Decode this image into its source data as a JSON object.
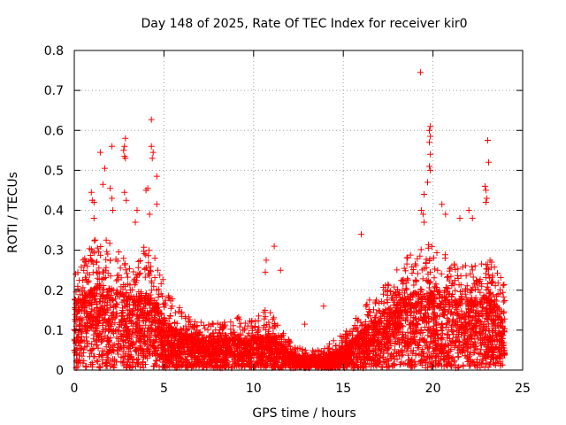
{
  "chart_data": {
    "type": "scatter",
    "title": "Day 148 of 2025, Rate Of TEC Index for receiver kir0",
    "xlabel": "GPS time / hours",
    "ylabel": "ROTI / TECUs",
    "xlim": [
      0,
      25
    ],
    "ylim": [
      0,
      0.8
    ],
    "x_ticks": [
      "0",
      "5",
      "10",
      "15",
      "20",
      "25"
    ],
    "y_ticks": [
      "0",
      "0.1",
      "0.2",
      "0.3",
      "0.4",
      "0.5",
      "0.6",
      "0.7",
      "0.8"
    ],
    "grid": true,
    "marker": "plus",
    "color": "#ff0000",
    "density_profile": [
      [
        0.0,
        0.16,
        0.24
      ],
      [
        0.5,
        0.18,
        0.28
      ],
      [
        1.0,
        0.2,
        0.33
      ],
      [
        1.5,
        0.21,
        0.32
      ],
      [
        2.0,
        0.2,
        0.33
      ],
      [
        2.5,
        0.19,
        0.3
      ],
      [
        3.0,
        0.18,
        0.28
      ],
      [
        3.5,
        0.17,
        0.26
      ],
      [
        4.0,
        0.19,
        0.33
      ],
      [
        4.5,
        0.17,
        0.32
      ],
      [
        5.0,
        0.12,
        0.22
      ],
      [
        5.5,
        0.1,
        0.18
      ],
      [
        6.0,
        0.09,
        0.15
      ],
      [
        6.5,
        0.08,
        0.13
      ],
      [
        7.0,
        0.07,
        0.12
      ],
      [
        7.5,
        0.07,
        0.12
      ],
      [
        8.0,
        0.07,
        0.12
      ],
      [
        8.5,
        0.07,
        0.12
      ],
      [
        9.0,
        0.08,
        0.14
      ],
      [
        9.5,
        0.07,
        0.13
      ],
      [
        10.0,
        0.08,
        0.14
      ],
      [
        10.5,
        0.08,
        0.15
      ],
      [
        11.0,
        0.08,
        0.15
      ],
      [
        11.5,
        0.06,
        0.11
      ],
      [
        12.0,
        0.04,
        0.08
      ],
      [
        12.5,
        0.03,
        0.06
      ],
      [
        13.0,
        0.03,
        0.05
      ],
      [
        13.5,
        0.03,
        0.05
      ],
      [
        14.0,
        0.03,
        0.06
      ],
      [
        14.5,
        0.04,
        0.08
      ],
      [
        15.0,
        0.05,
        0.09
      ],
      [
        15.5,
        0.07,
        0.12
      ],
      [
        16.0,
        0.09,
        0.15
      ],
      [
        16.5,
        0.11,
        0.18
      ],
      [
        17.0,
        0.13,
        0.2
      ],
      [
        17.5,
        0.15,
        0.22
      ],
      [
        18.0,
        0.17,
        0.26
      ],
      [
        18.5,
        0.18,
        0.29
      ],
      [
        19.0,
        0.19,
        0.3
      ],
      [
        19.5,
        0.19,
        0.32
      ],
      [
        20.0,
        0.19,
        0.31
      ],
      [
        20.5,
        0.18,
        0.3
      ],
      [
        21.0,
        0.17,
        0.28
      ],
      [
        21.5,
        0.17,
        0.27
      ],
      [
        22.0,
        0.17,
        0.26
      ],
      [
        22.5,
        0.17,
        0.27
      ],
      [
        23.0,
        0.18,
        0.3
      ],
      [
        23.5,
        0.16,
        0.25
      ],
      [
        24.0,
        0.14,
        0.22
      ]
    ],
    "outliers": [
      [
        19.3,
        0.745
      ],
      [
        19.85,
        0.61
      ],
      [
        19.8,
        0.6
      ],
      [
        19.85,
        0.585
      ],
      [
        19.8,
        0.57
      ],
      [
        19.85,
        0.54
      ],
      [
        19.8,
        0.51
      ],
      [
        19.85,
        0.5
      ],
      [
        19.7,
        0.47
      ],
      [
        4.3,
        0.627
      ],
      [
        4.3,
        0.56
      ],
      [
        4.4,
        0.545
      ],
      [
        4.35,
        0.53
      ],
      [
        4.6,
        0.485
      ],
      [
        2.85,
        0.58
      ],
      [
        2.8,
        0.56
      ],
      [
        2.75,
        0.55
      ],
      [
        2.8,
        0.535
      ],
      [
        2.85,
        0.53
      ],
      [
        2.1,
        0.56
      ],
      [
        1.45,
        0.545
      ],
      [
        1.7,
        0.505
      ],
      [
        1.6,
        0.465
      ],
      [
        2.0,
        0.455
      ],
      [
        2.8,
        0.445
      ],
      [
        2.1,
        0.43
      ],
      [
        0.95,
        0.445
      ],
      [
        1.0,
        0.425
      ],
      [
        1.1,
        0.42
      ],
      [
        2.15,
        0.4
      ],
      [
        2.9,
        0.425
      ],
      [
        3.5,
        0.4
      ],
      [
        4.1,
        0.455
      ],
      [
        4.0,
        0.45
      ],
      [
        4.6,
        0.415
      ],
      [
        4.2,
        0.39
      ],
      [
        1.1,
        0.38
      ],
      [
        3.4,
        0.37
      ],
      [
        23.05,
        0.575
      ],
      [
        23.1,
        0.52
      ],
      [
        22.9,
        0.46
      ],
      [
        22.95,
        0.45
      ],
      [
        23.0,
        0.43
      ],
      [
        22.95,
        0.42
      ],
      [
        19.5,
        0.44
      ],
      [
        19.35,
        0.4
      ],
      [
        19.45,
        0.39
      ],
      [
        19.5,
        0.37
      ],
      [
        20.5,
        0.415
      ],
      [
        20.7,
        0.39
      ],
      [
        21.5,
        0.38
      ],
      [
        22.0,
        0.4
      ],
      [
        22.2,
        0.38
      ],
      [
        11.15,
        0.31
      ],
      [
        10.7,
        0.275
      ],
      [
        11.5,
        0.25
      ],
      [
        10.65,
        0.245
      ],
      [
        16.0,
        0.34
      ],
      [
        13.9,
        0.16
      ],
      [
        12.85,
        0.115
      ]
    ]
  }
}
